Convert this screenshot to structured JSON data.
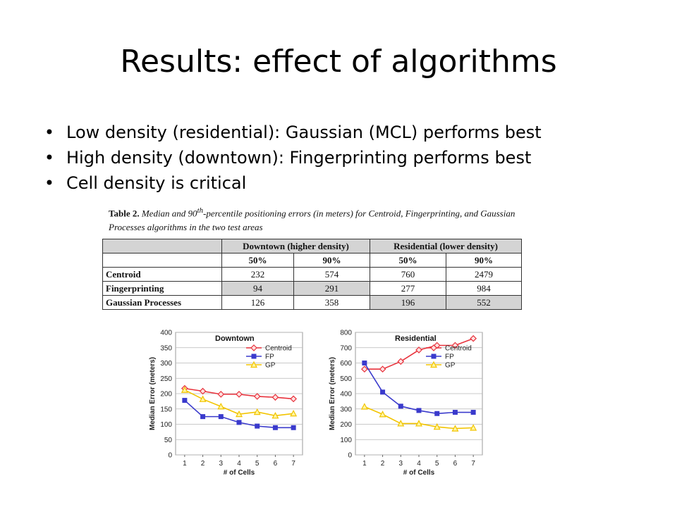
{
  "slide": {
    "title": "Results: effect of algorithms",
    "bullets": [
      "Low density (residential): Gaussian (MCL) performs best",
      "High density (downtown): Fingerprinting performs best",
      "Cell density is critical"
    ],
    "bullet_glyph": "•"
  },
  "table": {
    "caption_label": "Table 2.",
    "caption_text_a": "Median and 90",
    "caption_sup": "th",
    "caption_text_b": "-percentile positioning errors (in meters) for Centroid, Fingerprinting, and Gaussian Processes algorithms in the two test areas",
    "group_headers": [
      "Downtown (higher density)",
      "Residential (lower density)"
    ],
    "sub_headers": [
      "50%",
      "90%",
      "50%",
      "90%"
    ],
    "rows": [
      {
        "label": "Centroid",
        "values": [
          "232",
          "574",
          "760",
          "2479"
        ]
      },
      {
        "label": "Fingerprinting",
        "values": [
          "94",
          "291",
          "277",
          "984"
        ]
      },
      {
        "label": "Gaussian Processes",
        "values": [
          "126",
          "358",
          "196",
          "552"
        ]
      }
    ]
  },
  "chart_data": [
    {
      "type": "line",
      "title": "Downtown",
      "xlabel": "# of Cells",
      "ylabel": "Median Error (meters)",
      "x": [
        1,
        2,
        3,
        4,
        5,
        6,
        7
      ],
      "ylim": [
        0,
        400
      ],
      "yticks": [
        0,
        50,
        100,
        150,
        200,
        250,
        300,
        350,
        400
      ],
      "grid": true,
      "legend_position": "top-right",
      "series": [
        {
          "name": "Centroid",
          "color": "#e8323c",
          "marker": "diamond",
          "values": [
            217,
            208,
            198,
            198,
            191,
            188,
            183
          ]
        },
        {
          "name": "FP",
          "color": "#3a3acc",
          "marker": "square",
          "values": [
            178,
            125,
            125,
            106,
            94,
            89,
            89
          ]
        },
        {
          "name": "GP",
          "color": "#f2c400",
          "marker": "triangle",
          "values": [
            212,
            182,
            158,
            133,
            140,
            128,
            135
          ]
        }
      ]
    },
    {
      "type": "line",
      "title": "Residential",
      "xlabel": "# of Cells",
      "ylabel": "Median Error (meters)",
      "x": [
        1,
        2,
        3,
        4,
        5,
        6,
        7
      ],
      "ylim": [
        0,
        800
      ],
      "yticks": [
        0,
        100,
        200,
        300,
        400,
        500,
        600,
        700,
        800
      ],
      "grid": true,
      "legend_position": "top-right",
      "series": [
        {
          "name": "Centroid",
          "color": "#e8323c",
          "marker": "diamond",
          "values": [
            560,
            560,
            610,
            685,
            715,
            715,
            760
          ]
        },
        {
          "name": "FP",
          "color": "#3a3acc",
          "marker": "square",
          "values": [
            600,
            410,
            318,
            290,
            270,
            278,
            278
          ]
        },
        {
          "name": "GP",
          "color": "#f2c400",
          "marker": "triangle",
          "values": [
            315,
            265,
            205,
            205,
            183,
            172,
            177
          ]
        }
      ]
    }
  ]
}
